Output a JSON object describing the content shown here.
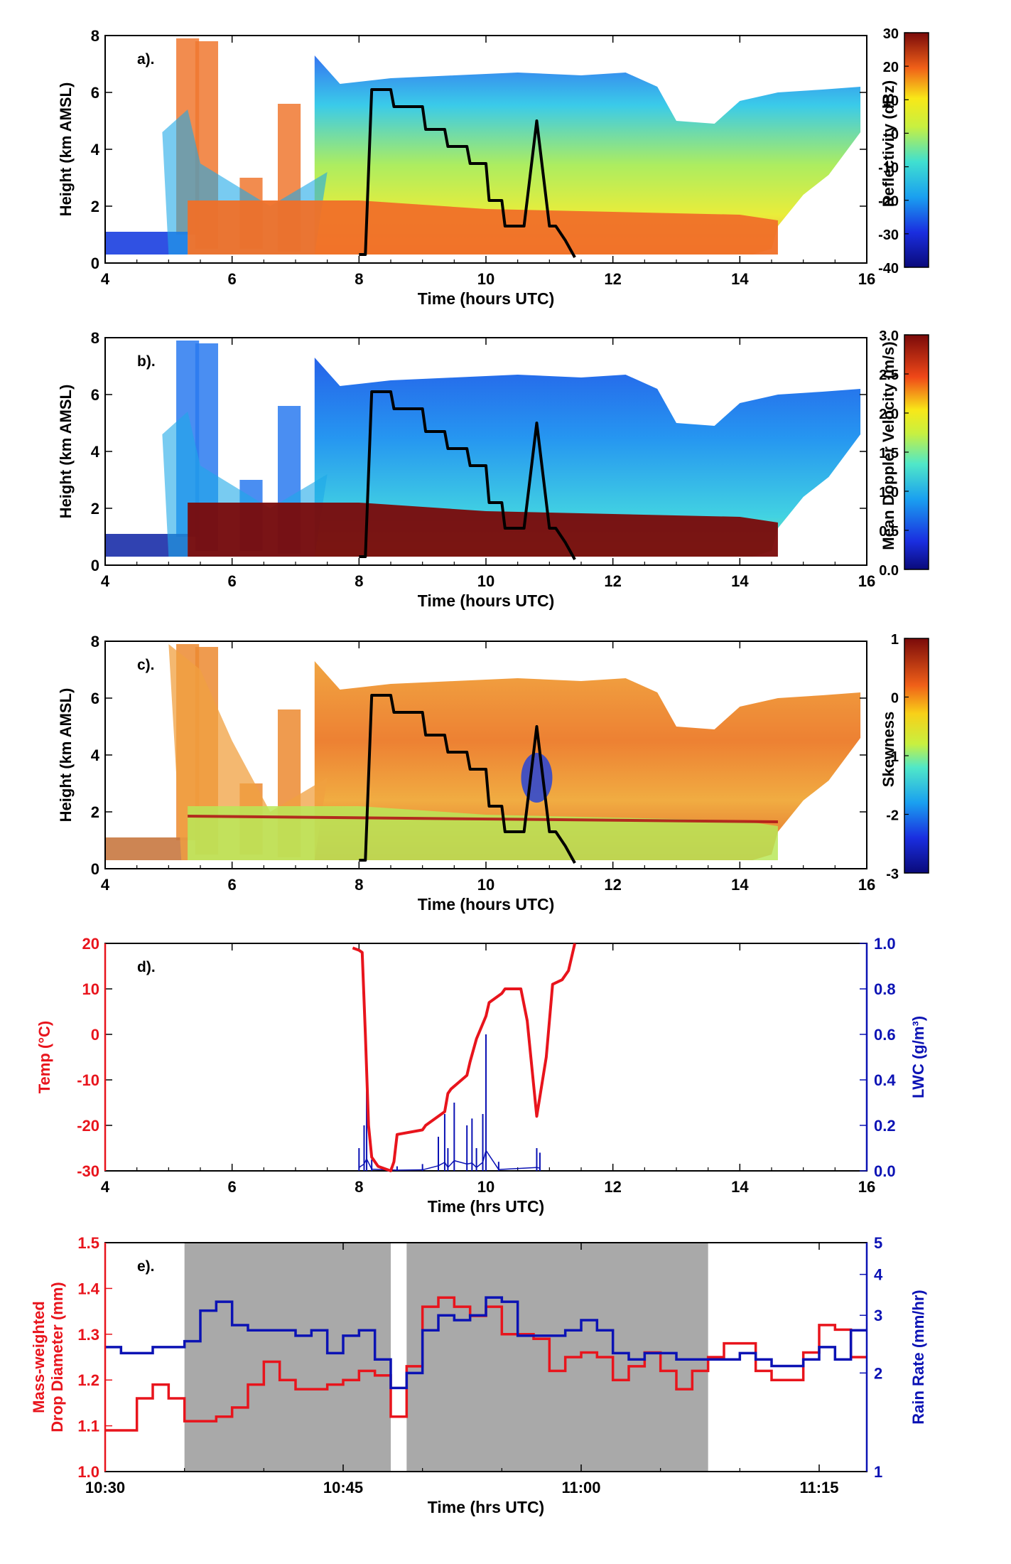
{
  "chart_data": [
    {
      "type": "heatmap",
      "panel_label": "a).",
      "xlabel": "Time (hours UTC)",
      "ylabel": "Height (km AMSL)",
      "xlim": [
        4,
        16
      ],
      "ylim": [
        0,
        8
      ],
      "xticks": [
        "4",
        "6",
        "8",
        "10",
        "12",
        "14",
        "16"
      ],
      "yticks": [
        "0",
        "2",
        "4",
        "6",
        "8"
      ],
      "colorbar": {
        "label": "Reflectivity (dBz)",
        "range": [
          -40,
          30
        ],
        "ticks": [
          "-40",
          "-30",
          "-20",
          "-10",
          "0",
          "10",
          "20",
          "30"
        ]
      },
      "flight_track": {
        "x": [
          8.0,
          8.1,
          8.2,
          8.5,
          8.55,
          9.0,
          9.05,
          9.35,
          9.4,
          9.7,
          9.75,
          10.0,
          10.05,
          10.25,
          10.3,
          10.6,
          10.8,
          11.0,
          11.1,
          11.25,
          11.4
        ],
        "y": [
          0.3,
          0.3,
          6.1,
          6.1,
          5.5,
          5.5,
          4.7,
          4.7,
          4.1,
          4.1,
          3.5,
          3.5,
          2.2,
          2.2,
          1.3,
          1.3,
          5.0,
          1.3,
          1.3,
          0.8,
          0.2
        ]
      }
    },
    {
      "type": "heatmap",
      "panel_label": "b).",
      "xlabel": "Time (hours UTC)",
      "ylabel": "Height (km AMSL)",
      "xlim": [
        4,
        16
      ],
      "ylim": [
        0,
        8
      ],
      "xticks": [
        "4",
        "6",
        "8",
        "10",
        "12",
        "14",
        "16"
      ],
      "yticks": [
        "0",
        "2",
        "4",
        "6",
        "8"
      ],
      "colorbar": {
        "label": "Mean Doppler Velocity (m/s)",
        "range": [
          0,
          3
        ],
        "ticks": [
          "0.0",
          "0.5",
          "1.0",
          "1.5",
          "2.0",
          "2.5",
          "3.0"
        ]
      },
      "flight_track": {
        "x": [
          8.0,
          8.1,
          8.2,
          8.5,
          8.55,
          9.0,
          9.05,
          9.35,
          9.4,
          9.7,
          9.75,
          10.0,
          10.05,
          10.25,
          10.3,
          10.6,
          10.8,
          11.0,
          11.1,
          11.25,
          11.4
        ],
        "y": [
          0.3,
          0.3,
          6.1,
          6.1,
          5.5,
          5.5,
          4.7,
          4.7,
          4.1,
          4.1,
          3.5,
          3.5,
          2.2,
          2.2,
          1.3,
          1.3,
          5.0,
          1.3,
          1.3,
          0.8,
          0.2
        ]
      }
    },
    {
      "type": "heatmap",
      "panel_label": "c).",
      "xlabel": "Time (hours UTC)",
      "ylabel": "Height (km AMSL)",
      "xlim": [
        4,
        16
      ],
      "ylim": [
        0,
        8
      ],
      "xticks": [
        "4",
        "6",
        "8",
        "10",
        "12",
        "14",
        "16"
      ],
      "yticks": [
        "0",
        "2",
        "4",
        "6",
        "8"
      ],
      "colorbar": {
        "label": "Skewness",
        "range": [
          -3,
          1
        ],
        "ticks": [
          "-3",
          "-2",
          "-1",
          "0",
          "1"
        ]
      },
      "flight_track": {
        "x": [
          8.0,
          8.1,
          8.2,
          8.5,
          8.55,
          9.0,
          9.05,
          9.35,
          9.4,
          9.7,
          9.75,
          10.0,
          10.05,
          10.25,
          10.3,
          10.6,
          10.8,
          11.0,
          11.1,
          11.25,
          11.4
        ],
        "y": [
          0.3,
          0.3,
          6.1,
          6.1,
          5.5,
          5.5,
          4.7,
          4.7,
          4.1,
          4.1,
          3.5,
          3.5,
          2.2,
          2.2,
          1.3,
          1.3,
          5.0,
          1.3,
          1.3,
          0.8,
          0.2
        ]
      }
    },
    {
      "type": "line",
      "panel_label": "d).",
      "xlabel": "Time (hrs UTC)",
      "ylabel": "Temp (°C)",
      "ylabel_right": "LWC (g/m³)",
      "xlim": [
        4,
        16
      ],
      "ylim": [
        -30,
        20
      ],
      "ylim_right": [
        0,
        1
      ],
      "xticks": [
        "4",
        "6",
        "8",
        "10",
        "12",
        "14",
        "16"
      ],
      "yticks": [
        "-30",
        "-20",
        "-10",
        "0",
        "10",
        "20"
      ],
      "yticks_right": [
        "0.0",
        "0.2",
        "0.4",
        "0.6",
        "0.8",
        "1.0"
      ],
      "colors": {
        "temp": "#e8141c",
        "lwc": "#0b12b4"
      },
      "series": [
        {
          "x": [
            7.9,
            8.0,
            8.05,
            8.1,
            8.15,
            8.2,
            8.3,
            8.5,
            8.55,
            8.6,
            9.0,
            9.05,
            9.35,
            9.4,
            9.45,
            9.7,
            9.75,
            9.85,
            10.0,
            10.05,
            10.25,
            10.3,
            10.55,
            10.65,
            10.8,
            10.95,
            11.05,
            11.2,
            11.3,
            11.4
          ],
          "y": [
            19,
            18.5,
            18,
            0,
            -20,
            -27,
            -29,
            -30,
            -28,
            -22,
            -21,
            -20,
            -17,
            -13,
            -12,
            -9,
            -6,
            -1,
            4,
            7,
            9,
            10,
            10,
            3,
            -18,
            -5,
            11,
            12,
            14,
            20
          ]
        },
        {
          "x": [
            8.0,
            8.08,
            8.12,
            8.2,
            8.6,
            9.0,
            9.25,
            9.35,
            9.4,
            9.5,
            9.7,
            9.78,
            9.85,
            9.95,
            10.0,
            10.2,
            10.8,
            10.85
          ],
          "y": [
            0.1,
            0.2,
            0.35,
            0.05,
            0.02,
            0.03,
            0.15,
            0.25,
            0.1,
            0.3,
            0.2,
            0.23,
            0.1,
            0.25,
            0.6,
            0.04,
            0.1,
            0.08
          ]
        }
      ]
    },
    {
      "type": "line",
      "panel_label": "e).",
      "xlabel": "Time (hrs UTC)",
      "ylabel": "Mass-weighted Drop Diameter (mm)",
      "ylabel_right": "Rain Rate (mm/hr)",
      "xlim": [
        "10:30",
        "11:18"
      ],
      "ylim": [
        1.0,
        1.5
      ],
      "ylim_right": [
        1,
        5
      ],
      "yscale_right": "log",
      "xticks": [
        "10:30",
        "10:45",
        "11:00",
        "11:15"
      ],
      "yticks": [
        "1.0",
        "1.1",
        "1.2",
        "1.3",
        "1.4",
        "1.5"
      ],
      "yticks_right": [
        "1",
        "2",
        "3",
        "4",
        "5"
      ],
      "colors": {
        "diameter": "#e8141c",
        "rain_rate": "#0b12b4",
        "shading": "#a9a9a9"
      },
      "shaded_ranges": [
        [
          "10:35",
          "10:48"
        ],
        [
          "10:49",
          "11:08"
        ]
      ],
      "series": [
        {
          "x": [
            "10:30",
            "10:31",
            "10:32",
            "10:33",
            "10:34",
            "10:35",
            "10:36",
            "10:37",
            "10:38",
            "10:39",
            "10:40",
            "10:41",
            "10:42",
            "10:43",
            "10:44",
            "10:45",
            "10:46",
            "10:47",
            "10:48",
            "10:49",
            "10:50",
            "10:51",
            "10:52",
            "10:53",
            "10:54",
            "10:55",
            "10:56",
            "10:57",
            "10:58",
            "10:59",
            "11:00",
            "11:01",
            "11:02",
            "11:03",
            "11:04",
            "11:05",
            "11:06",
            "11:07",
            "11:08",
            "11:09",
            "11:10",
            "11:11",
            "11:12",
            "11:13",
            "11:14",
            "11:15",
            "11:16",
            "11:17"
          ],
          "y": [
            1.09,
            1.09,
            1.16,
            1.19,
            1.16,
            1.11,
            1.11,
            1.12,
            1.14,
            1.19,
            1.24,
            1.2,
            1.18,
            1.18,
            1.19,
            1.2,
            1.22,
            1.21,
            1.12,
            1.23,
            1.36,
            1.38,
            1.36,
            1.34,
            1.36,
            1.3,
            1.3,
            1.29,
            1.22,
            1.25,
            1.26,
            1.25,
            1.2,
            1.23,
            1.26,
            1.22,
            1.18,
            1.22,
            1.25,
            1.28,
            1.28,
            1.22,
            1.2,
            1.2,
            1.26,
            1.32,
            1.31,
            1.25
          ]
        },
        {
          "x": [
            "10:30",
            "10:31",
            "10:32",
            "10:33",
            "10:34",
            "10:35",
            "10:36",
            "10:37",
            "10:38",
            "10:39",
            "10:40",
            "10:41",
            "10:42",
            "10:43",
            "10:44",
            "10:45",
            "10:46",
            "10:47",
            "10:48",
            "10:49",
            "10:50",
            "10:51",
            "10:52",
            "10:53",
            "10:54",
            "10:55",
            "10:56",
            "10:57",
            "10:58",
            "10:59",
            "11:00",
            "11:01",
            "11:02",
            "11:03",
            "11:04",
            "11:05",
            "11:06",
            "11:07",
            "11:08",
            "11:09",
            "11:10",
            "11:11",
            "11:12",
            "11:13",
            "11:14",
            "11:15",
            "11:16",
            "11:17"
          ],
          "y": [
            2.4,
            2.3,
            2.3,
            2.4,
            2.4,
            2.5,
            3.1,
            3.3,
            2.8,
            2.7,
            2.7,
            2.7,
            2.6,
            2.7,
            2.3,
            2.6,
            2.7,
            2.2,
            1.8,
            2.0,
            2.7,
            3.0,
            2.9,
            3.0,
            3.4,
            3.3,
            2.6,
            2.6,
            2.6,
            2.7,
            2.9,
            2.7,
            2.3,
            2.2,
            2.3,
            2.3,
            2.2,
            2.2,
            2.2,
            2.2,
            2.3,
            2.2,
            2.1,
            2.1,
            2.2,
            2.4,
            2.2,
            2.7
          ]
        }
      ]
    }
  ]
}
